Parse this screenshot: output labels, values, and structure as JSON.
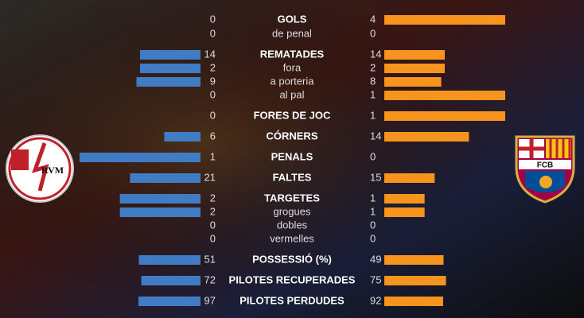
{
  "teams": {
    "home": {
      "logo_text": "RVM",
      "color": "#3f7cc4"
    },
    "away": {
      "logo_text": "FCB",
      "color": "#f7941d"
    }
  },
  "rows": [
    {
      "label": "GOLS",
      "home": 0,
      "away": 4,
      "main": true
    },
    {
      "label": "de penal",
      "home": 0,
      "away": 0,
      "main": false
    },
    {
      "label": "REMATADES",
      "home": 14,
      "away": 14,
      "main": true
    },
    {
      "label": "fora",
      "home": 2,
      "away": 2,
      "main": false
    },
    {
      "label": "a porteria",
      "home": 9,
      "away": 8,
      "main": false
    },
    {
      "label": "al pal",
      "home": 0,
      "away": 1,
      "main": false
    },
    {
      "label": "FORES DE JOC",
      "home": 0,
      "away": 1,
      "main": true
    },
    {
      "label": "CÓRNERS",
      "home": 6,
      "away": 14,
      "main": true
    },
    {
      "label": "PENALS",
      "home": 1,
      "away": 0,
      "main": true
    },
    {
      "label": "FALTES",
      "home": 21,
      "away": 15,
      "main": true
    },
    {
      "label": "TARGETES",
      "home": 2,
      "away": 1,
      "main": true
    },
    {
      "label": "grogues",
      "home": 2,
      "away": 1,
      "main": false
    },
    {
      "label": "dobles",
      "home": 0,
      "away": 0,
      "main": false
    },
    {
      "label": "vermelles",
      "home": 0,
      "away": 0,
      "main": false
    },
    {
      "label": "POSSESSIÓ (%)",
      "home": 51,
      "away": 49,
      "main": true
    },
    {
      "label": "PILOTES RECUPERADES",
      "home": 72,
      "away": 75,
      "main": true
    },
    {
      "label": "PILOTES PERDUDES",
      "home": 97,
      "away": 92,
      "main": true
    }
  ]
}
